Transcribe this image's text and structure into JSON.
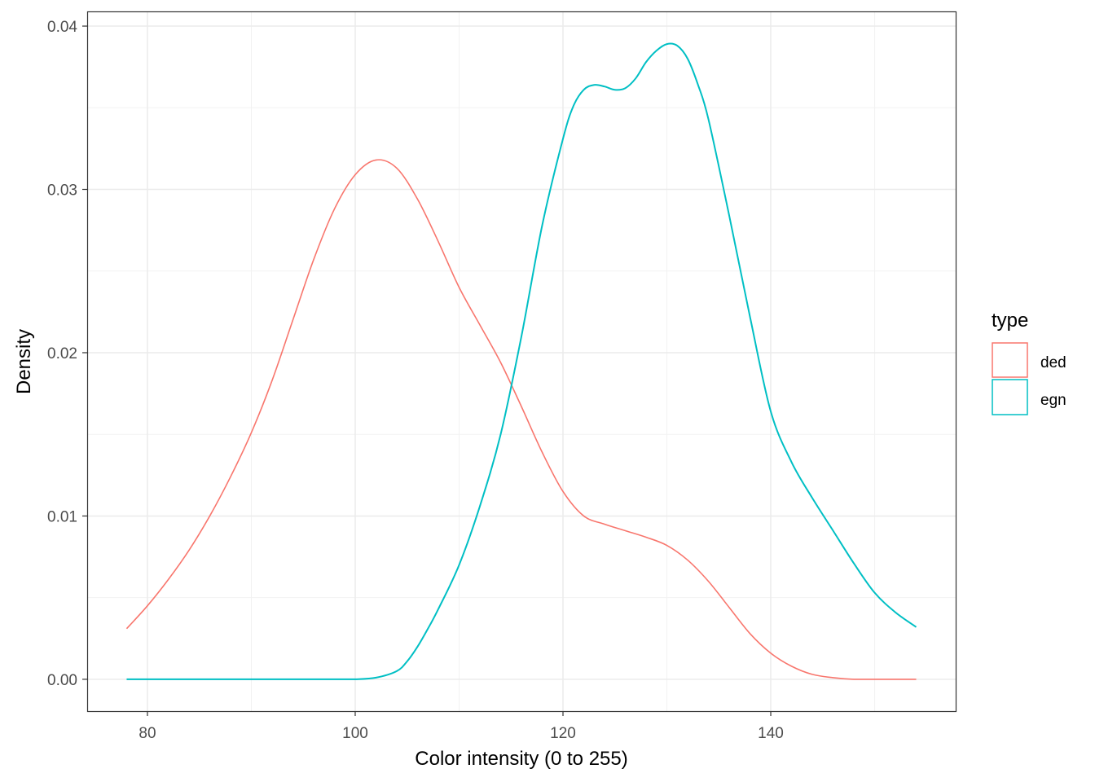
{
  "chart_data": {
    "type": "line",
    "title": "",
    "xlabel": "Color intensity (0 to 255)",
    "ylabel": "Density",
    "xlim": [
      74.2,
      157.8
    ],
    "ylim": [
      -0.00195,
      0.0409
    ],
    "x_ticks": [
      80,
      100,
      120,
      140
    ],
    "x_tick_labels": [
      "80",
      "100",
      "120",
      "140"
    ],
    "y_ticks": [
      0,
      0.01,
      0.02,
      0.03,
      0.04
    ],
    "y_tick_labels": [
      "0.00",
      "0.01",
      "0.02",
      "0.03",
      "0.04"
    ],
    "grid": true,
    "legend": {
      "title": "type",
      "position": "right"
    },
    "series": [
      {
        "name": "ded",
        "color": "#F8766D",
        "x": [
          78,
          80,
          82,
          84,
          86,
          88,
          90,
          92,
          94,
          96,
          98,
          100,
          102,
          104,
          106,
          108,
          110,
          112,
          114,
          116,
          118,
          120,
          122,
          124,
          126,
          128,
          130,
          132,
          134,
          136,
          138,
          140,
          142,
          144,
          146,
          148,
          150,
          152,
          154
        ],
        "y": [
          0.0031,
          0.0045,
          0.0061,
          0.0079,
          0.01,
          0.0124,
          0.0151,
          0.0183,
          0.022,
          0.0257,
          0.0288,
          0.0309,
          0.0318,
          0.0313,
          0.0294,
          0.0268,
          0.024,
          0.0217,
          0.0194,
          0.0167,
          0.0139,
          0.0115,
          0.01,
          0.0095,
          0.0091,
          0.0087,
          0.0082,
          0.0073,
          0.006,
          0.0044,
          0.0028,
          0.0016,
          0.0008,
          0.0003,
          0.0001,
          0.0,
          0.0,
          0.0,
          0.0
        ]
      },
      {
        "name": "egn",
        "color": "#00BFC4",
        "x": [
          78,
          80,
          82,
          84,
          86,
          88,
          90,
          92,
          94,
          96,
          98,
          100,
          102,
          104,
          105,
          106,
          107,
          108,
          110,
          112,
          114,
          116,
          118,
          120,
          121,
          122,
          123,
          124,
          125,
          126,
          127,
          128,
          129,
          130,
          131,
          132,
          133,
          134,
          136,
          138,
          140,
          142,
          144,
          146,
          148,
          150,
          152,
          154
        ],
        "y": [
          0,
          0,
          0,
          0,
          0,
          0,
          0,
          0,
          0,
          0,
          0,
          0,
          0.0001,
          0.0005,
          0.0011,
          0.002,
          0.0031,
          0.0043,
          0.007,
          0.0106,
          0.015,
          0.021,
          0.0278,
          0.0331,
          0.0351,
          0.0361,
          0.0364,
          0.0363,
          0.0361,
          0.0362,
          0.0368,
          0.0378,
          0.0385,
          0.0389,
          0.0388,
          0.038,
          0.0364,
          0.0343,
          0.0284,
          0.0222,
          0.0164,
          0.0133,
          0.0111,
          0.0091,
          0.0071,
          0.0053,
          0.0041,
          0.0032
        ]
      }
    ]
  }
}
